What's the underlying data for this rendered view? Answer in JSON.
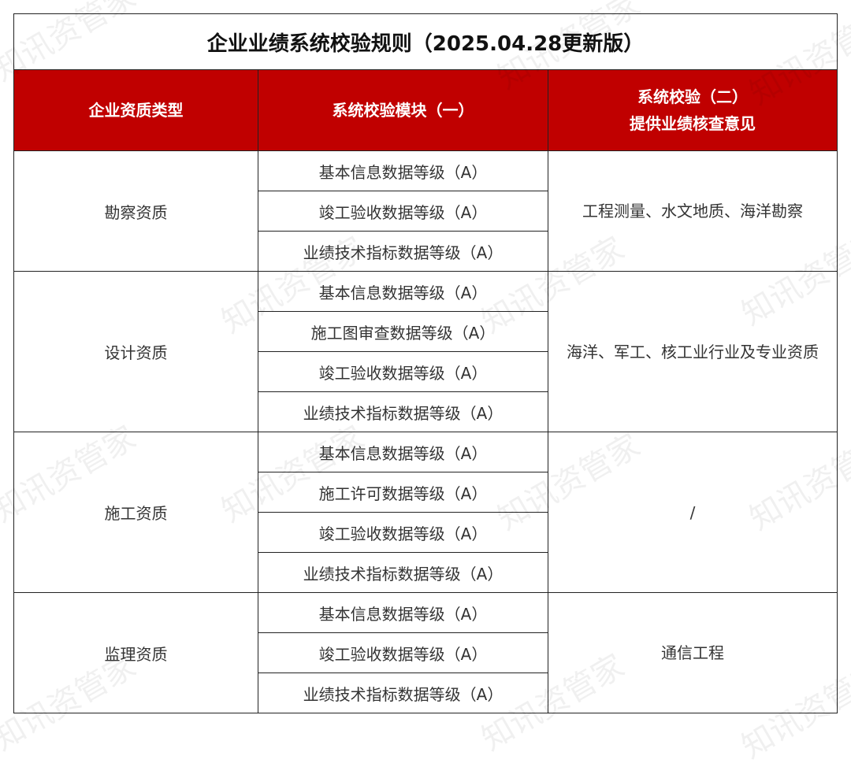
{
  "title": "企业业绩系统校验规则（2025.04.28更新版）",
  "headers": {
    "col1": "企业资质类型",
    "col2": "系统校验模块（一）",
    "col3_line1": "系统校验（二）",
    "col3_line2": "提供业绩核查意见"
  },
  "groups": [
    {
      "type": "勘察资质",
      "modules": [
        "基本信息数据等级（A）",
        "竣工验收数据等级（A）",
        "业绩技术指标数据等级（A）"
      ],
      "opinion": "工程测量、水文地质、海洋勘察"
    },
    {
      "type": "设计资质",
      "modules": [
        "基本信息数据等级（A）",
        "施工图审查数据等级（A）",
        "竣工验收数据等级（A）",
        "业绩技术指标数据等级（A）"
      ],
      "opinion": "海洋、军工、核工业行业及专业资质"
    },
    {
      "type": "施工资质",
      "modules": [
        "基本信息数据等级（A）",
        "施工许可数据等级（A）",
        "竣工验收数据等级（A）",
        "业绩技术指标数据等级（A）"
      ],
      "opinion": "/"
    },
    {
      "type": "监理资质",
      "modules": [
        "基本信息数据等级（A）",
        "竣工验收数据等级（A）",
        "业绩技术指标数据等级（A）"
      ],
      "opinion": "通信工程"
    }
  ],
  "watermark": "知讯资管家",
  "colors": {
    "header_bg": "#c00000",
    "header_text": "#ffffff"
  }
}
